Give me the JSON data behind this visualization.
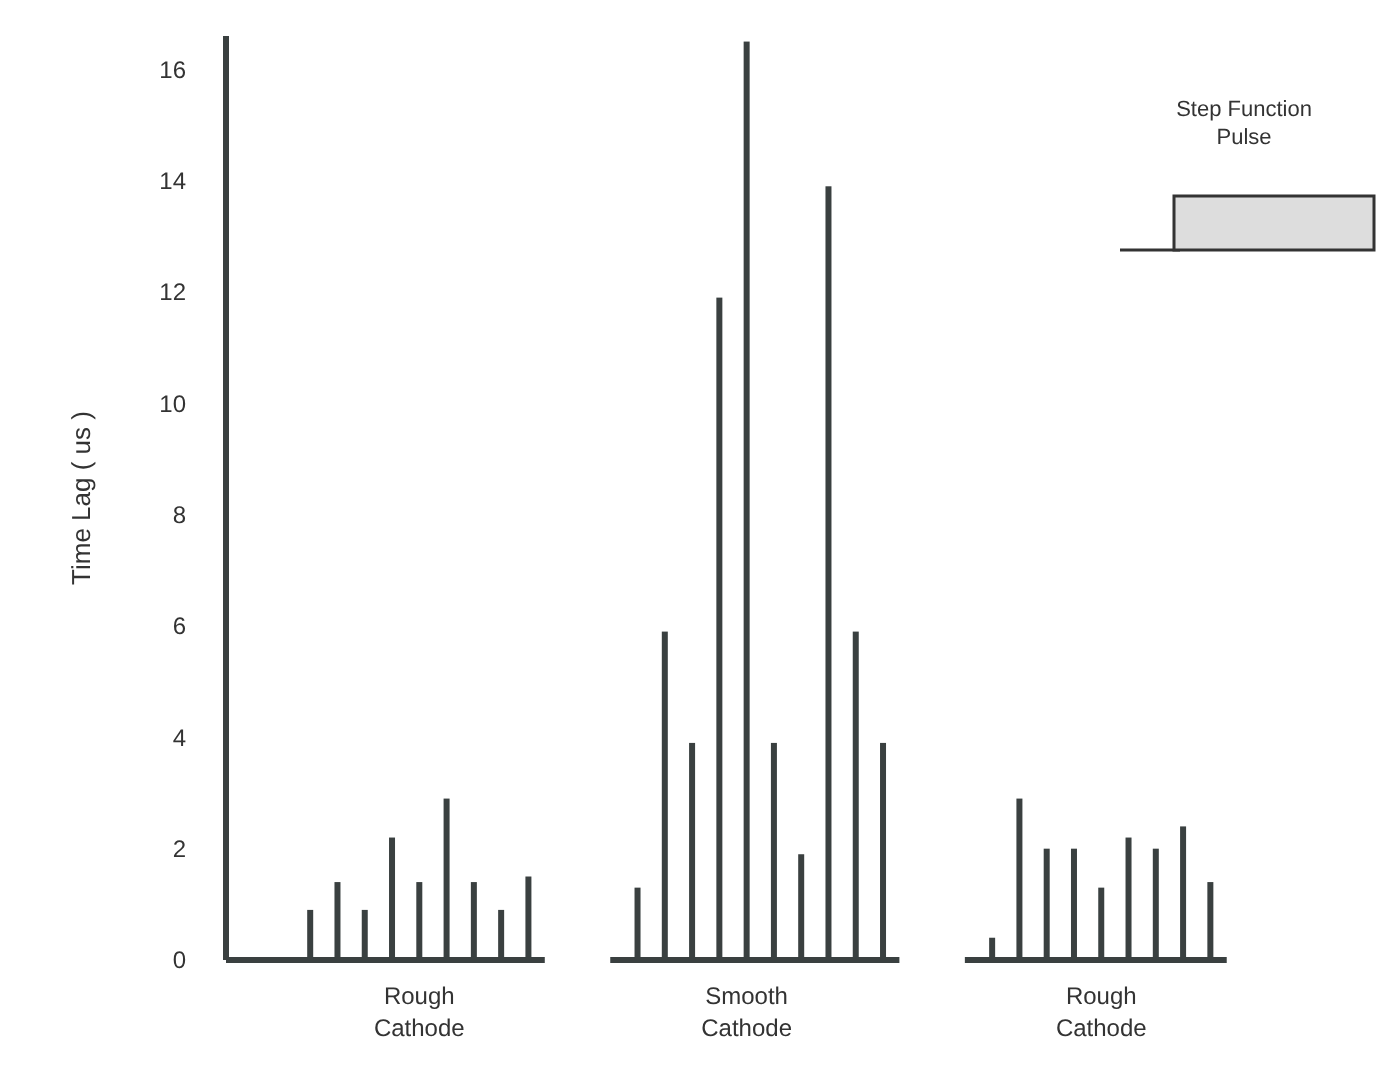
{
  "chart_data": {
    "type": "bar",
    "ylabel": "Time Lag ( us )",
    "categories": [
      null,
      null,
      null,
      null,
      null,
      null,
      "Rough Cathode",
      null,
      null,
      null,
      null,
      null,
      null,
      null,
      null,
      null,
      null,
      null,
      "Smooth Cathode",
      null,
      null,
      null,
      null,
      null,
      null,
      null,
      null,
      null,
      null,
      null,
      null,
      "Rough Cathode",
      null,
      null,
      null,
      null
    ],
    "values": [
      null,
      null,
      0.9,
      1.4,
      0.9,
      2.2,
      1.4,
      2.9,
      1.4,
      0.9,
      1.5,
      null,
      null,
      null,
      1.3,
      5.9,
      3.9,
      11.9,
      16.5,
      3.9,
      1.9,
      13.9,
      5.9,
      3.9,
      null,
      null,
      null,
      0.4,
      2.9,
      2.0,
      2.0,
      1.3,
      2.2,
      2.0,
      2.4,
      1.4
    ],
    "color": "#3a4040",
    "ylim": [
      0,
      16.6
    ],
    "yticks": [
      0,
      2,
      4,
      6,
      8,
      10,
      12,
      14,
      16
    ],
    "annotations": [
      "Step Function Pulse"
    ]
  }
}
